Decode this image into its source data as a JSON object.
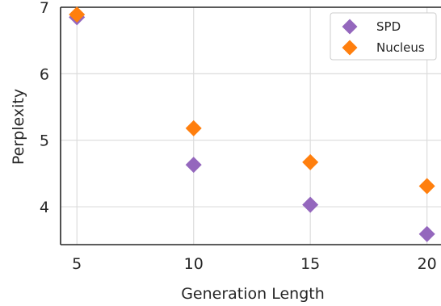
{
  "chart_data": {
    "type": "scatter",
    "title": "",
    "xlabel": "Generation Length",
    "ylabel": "Perplexity",
    "xlim": [
      4.3,
      20.6
    ],
    "ylim": [
      3.43,
      7.0
    ],
    "xticks": [
      5,
      10,
      15,
      20
    ],
    "xtick_labels": [
      "5",
      "10",
      "15",
      "20"
    ],
    "yticks": [
      4,
      5,
      6,
      7
    ],
    "ytick_labels": [
      "4",
      "5",
      "6",
      "7"
    ],
    "grid": true,
    "legend_position": "top-right",
    "marker": "diamond",
    "series": [
      {
        "name": "SPD",
        "color": "#9467bd",
        "points": [
          {
            "x": 5,
            "y": 6.85
          },
          {
            "x": 10,
            "y": 4.63
          },
          {
            "x": 15,
            "y": 4.03
          },
          {
            "x": 20,
            "y": 3.59
          }
        ]
      },
      {
        "name": "Nucleus",
        "color": "#ff7f0e",
        "points": [
          {
            "x": 5,
            "y": 6.89
          },
          {
            "x": 10,
            "y": 5.18
          },
          {
            "x": 15,
            "y": 4.67
          },
          {
            "x": 20,
            "y": 4.31
          }
        ]
      }
    ]
  }
}
